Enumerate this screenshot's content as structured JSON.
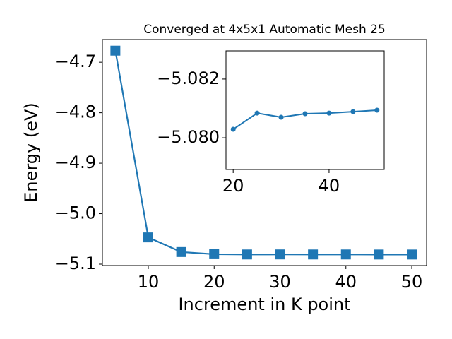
{
  "chart_data": [
    {
      "type": "line",
      "title": "Converged at 4x5x1 Automatic Mesh 25",
      "x_label": "Increment in K point",
      "y_label": "Energy (eV)",
      "x": [
        5,
        10,
        15,
        20,
        25,
        30,
        35,
        40,
        45,
        50
      ],
      "series": [
        {
          "color": "#1f77b4",
          "marker": "square",
          "values": [
            -4.677,
            -5.047,
            -5.076,
            -5.0803,
            -5.0808,
            -5.0807,
            -5.0808,
            -5.0808,
            -5.0809,
            -5.0809
          ]
        }
      ],
      "xlim": [
        3.03,
        52.25
      ],
      "ylim": [
        -5.1028,
        -4.655
      ],
      "xticks": [
        10,
        20,
        30,
        40,
        50
      ],
      "yticks": [
        {
          "value": -5.1,
          "label": "−5.1"
        },
        {
          "value": -5.0,
          "label": "−5.0"
        },
        {
          "value": -4.9,
          "label": "−4.9"
        },
        {
          "value": -4.8,
          "label": "−4.8"
        },
        {
          "value": -4.7,
          "label": "−4.7"
        }
      ]
    },
    {
      "type": "line",
      "x": [
        20,
        25,
        30,
        35,
        40,
        45,
        50
      ],
      "series": [
        {
          "color": "#1f77b4",
          "marker": "circle",
          "values": [
            -5.08029,
            -5.08084,
            -5.0807,
            -5.08082,
            -5.08084,
            -5.08089,
            -5.08094
          ]
        }
      ],
      "xlim": [
        18.5,
        51.5
      ],
      "ylim": [
        -5.07892,
        -5.08296
      ],
      "xticks": [
        20,
        40
      ],
      "yticks": [
        {
          "value": -5.08,
          "label": "−5.080"
        },
        {
          "value": -5.082,
          "label": "−5.082"
        }
      ]
    }
  ]
}
